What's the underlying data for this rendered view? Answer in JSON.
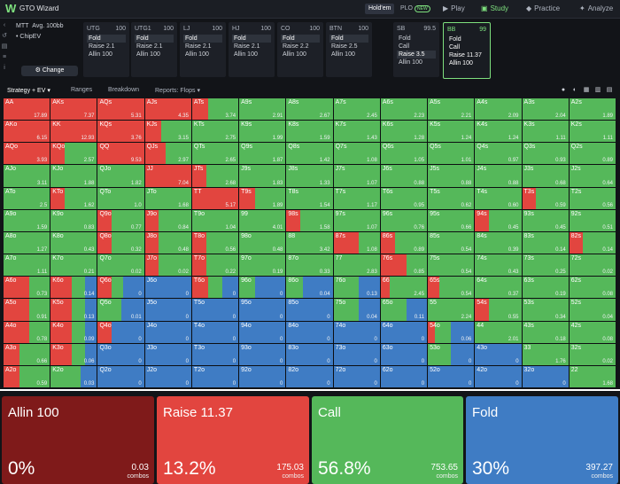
{
  "app": {
    "title": "GTO Wizard",
    "logo": "W"
  },
  "modes": {
    "holdem": "Hold'em",
    "plo": "PLO",
    "plo_badge": "NEW"
  },
  "nav": [
    {
      "label": "Play",
      "icon": "▶"
    },
    {
      "label": "Study",
      "icon": "▣"
    },
    {
      "label": "Practice",
      "icon": "◆"
    },
    {
      "label": "Analyze",
      "icon": "✦"
    }
  ],
  "info": {
    "format": "MTT",
    "stack": "Avg. 100bb",
    "model": "ChipEV",
    "change_label": "Change"
  },
  "positions": [
    {
      "name": "UTG",
      "stack": "100",
      "actions": [
        "Fold",
        "Raise 2.1",
        "Allin 100"
      ],
      "selected": 0
    },
    {
      "name": "UTG1",
      "stack": "100",
      "actions": [
        "Fold",
        "Raise 2.1",
        "Allin 100"
      ],
      "selected": 0
    },
    {
      "name": "LJ",
      "stack": "100",
      "actions": [
        "Fold",
        "Raise 2.1",
        "Allin 100"
      ],
      "selected": 0
    },
    {
      "name": "HJ",
      "stack": "100",
      "actions": [
        "Fold",
        "Raise 2.1",
        "Allin 100"
      ],
      "selected": 0
    },
    {
      "name": "CO",
      "stack": "100",
      "actions": [
        "Fold",
        "Raise 2.2",
        "Allin 100"
      ],
      "selected": 0
    },
    {
      "name": "BTN",
      "stack": "100",
      "actions": [
        "Fold",
        "Raise 2.5",
        "Allin 100"
      ],
      "selected": 0
    },
    {
      "name": "SB",
      "stack": "99.5",
      "actions": [
        "Fold",
        "Call",
        "Raise 3.5",
        "Allin 100"
      ],
      "selected": 2
    },
    {
      "name": "BB",
      "stack": "99",
      "actions": [
        "Fold",
        "Call",
        "Raise 11.37",
        "Allin 100"
      ],
      "selected": -1
    }
  ],
  "toolbar": {
    "strategy": "Strategy + EV",
    "ranges": "Ranges",
    "breakdown": "Breakdown",
    "reports": "Reports: Flops"
  },
  "colors": {
    "allin": "#7f1a1a",
    "raise": "#e2453f",
    "call": "#55b85a",
    "fold": "#3f7cc4"
  },
  "matrix": [
    [
      {
        "h": "AA",
        "ev": "17.89",
        "r": 1,
        "c": 0
      },
      {
        "h": "AKs",
        "ev": "7.37",
        "r": 1,
        "c": 0
      },
      {
        "h": "AQs",
        "ev": "5.31",
        "r": 1,
        "c": 0
      },
      {
        "h": "AJs",
        "ev": "4.35",
        "r": 1,
        "c": 0
      },
      {
        "h": "ATs",
        "ev": "3.74",
        "r": 0.35,
        "c": 0.65
      },
      {
        "h": "A9s",
        "ev": "2.91",
        "r": 0,
        "c": 1
      },
      {
        "h": "A8s",
        "ev": "2.67",
        "r": 0,
        "c": 1
      },
      {
        "h": "A7s",
        "ev": "2.45",
        "r": 0,
        "c": 1
      },
      {
        "h": "A6s",
        "ev": "2.23",
        "r": 0,
        "c": 1
      },
      {
        "h": "A5s",
        "ev": "2.21",
        "r": 0,
        "c": 1
      },
      {
        "h": "A4s",
        "ev": "2.09",
        "r": 0,
        "c": 1
      },
      {
        "h": "A3s",
        "ev": "2.04",
        "r": 0,
        "c": 1
      },
      {
        "h": "A2s",
        "ev": "1.89",
        "r": 0,
        "c": 1
      }
    ],
    [
      {
        "h": "AKo",
        "ev": "6.15",
        "r": 1,
        "c": 0
      },
      {
        "h": "KK",
        "ev": "12.93",
        "r": 1,
        "c": 0
      },
      {
        "h": "KQs",
        "ev": "3.76",
        "r": 1,
        "c": 0
      },
      {
        "h": "KJs",
        "ev": "3.15",
        "r": 0.35,
        "c": 0.65
      },
      {
        "h": "KTs",
        "ev": "2.75",
        "r": 0,
        "c": 1
      },
      {
        "h": "K9s",
        "ev": "1.99",
        "r": 0,
        "c": 1
      },
      {
        "h": "K8s",
        "ev": "1.59",
        "r": 0,
        "c": 1
      },
      {
        "h": "K7s",
        "ev": "1.43",
        "r": 0,
        "c": 1
      },
      {
        "h": "K6s",
        "ev": "1.28",
        "r": 0,
        "c": 1
      },
      {
        "h": "K5s",
        "ev": "1.24",
        "r": 0,
        "c": 1
      },
      {
        "h": "K4s",
        "ev": "1.24",
        "r": 0,
        "c": 1
      },
      {
        "h": "K3s",
        "ev": "1.11",
        "r": 0,
        "c": 1
      },
      {
        "h": "K2s",
        "ev": "1.11",
        "r": 0,
        "c": 1
      }
    ],
    [
      {
        "h": "AQo",
        "ev": "3.93",
        "r": 1,
        "c": 0
      },
      {
        "h": "KQo",
        "ev": "2.57",
        "r": 0.3,
        "c": 0.7
      },
      {
        "h": "QQ",
        "ev": "9.53",
        "r": 1,
        "c": 0
      },
      {
        "h": "QJs",
        "ev": "2.97",
        "r": 0.45,
        "c": 0.55
      },
      {
        "h": "QTs",
        "ev": "2.65",
        "r": 0,
        "c": 1
      },
      {
        "h": "Q9s",
        "ev": "1.87",
        "r": 0,
        "c": 1
      },
      {
        "h": "Q8s",
        "ev": "1.42",
        "r": 0,
        "c": 1
      },
      {
        "h": "Q7s",
        "ev": "1.08",
        "r": 0,
        "c": 1
      },
      {
        "h": "Q6s",
        "ev": "1.05",
        "r": 0,
        "c": 1
      },
      {
        "h": "Q5s",
        "ev": "1.01",
        "r": 0,
        "c": 1
      },
      {
        "h": "Q4s",
        "ev": "0.97",
        "r": 0,
        "c": 1
      },
      {
        "h": "Q3s",
        "ev": "0.93",
        "r": 0,
        "c": 1
      },
      {
        "h": "Q2s",
        "ev": "0.89",
        "r": 0,
        "c": 1
      }
    ],
    [
      {
        "h": "AJo",
        "ev": "3.11",
        "r": 0,
        "c": 1
      },
      {
        "h": "KJo",
        "ev": "1.88",
        "r": 0,
        "c": 1
      },
      {
        "h": "QJo",
        "ev": "1.82",
        "r": 0,
        "c": 1
      },
      {
        "h": "JJ",
        "ev": "7.04",
        "r": 1,
        "c": 0
      },
      {
        "h": "JTs",
        "ev": "2.68",
        "r": 0.3,
        "c": 0.7
      },
      {
        "h": "J9s",
        "ev": "1.83",
        "r": 0,
        "c": 1
      },
      {
        "h": "J8s",
        "ev": "1.33",
        "r": 0,
        "c": 1
      },
      {
        "h": "J7s",
        "ev": "1.07",
        "r": 0,
        "c": 1
      },
      {
        "h": "J6s",
        "ev": "0.88",
        "r": 0,
        "c": 1
      },
      {
        "h": "J5s",
        "ev": "0.88",
        "r": 0,
        "c": 1
      },
      {
        "h": "J4s",
        "ev": "0.88",
        "r": 0,
        "c": 1
      },
      {
        "h": "J3s",
        "ev": "0.68",
        "r": 0,
        "c": 1
      },
      {
        "h": "J2s",
        "ev": "0.64",
        "r": 0,
        "c": 1
      }
    ],
    [
      {
        "h": "ATo",
        "ev": "2.5",
        "r": 0,
        "c": 1
      },
      {
        "h": "KTo",
        "ev": "1.62",
        "r": 0.3,
        "c": 0.7
      },
      {
        "h": "QTo",
        "ev": "1.0",
        "r": 0,
        "c": 1
      },
      {
        "h": "JTo",
        "ev": "1.68",
        "r": 0,
        "c": 1
      },
      {
        "h": "TT",
        "ev": "5.17",
        "r": 1,
        "c": 0
      },
      {
        "h": "T9s",
        "ev": "1.89",
        "r": 0.35,
        "c": 0.65
      },
      {
        "h": "T8s",
        "ev": "1.54",
        "r": 0,
        "c": 1
      },
      {
        "h": "T7s",
        "ev": "1.17",
        "r": 0,
        "c": 1
      },
      {
        "h": "T6s",
        "ev": "0.95",
        "r": 0,
        "c": 1
      },
      {
        "h": "T5s",
        "ev": "0.62",
        "r": 0,
        "c": 1
      },
      {
        "h": "T4s",
        "ev": "0.60",
        "r": 0,
        "c": 1
      },
      {
        "h": "T3s",
        "ev": "0.59",
        "r": 0.3,
        "c": 0.7
      },
      {
        "h": "T2s",
        "ev": "0.56",
        "r": 0,
        "c": 1
      }
    ],
    [
      {
        "h": "A9o",
        "ev": "1.59",
        "r": 0,
        "c": 1
      },
      {
        "h": "K9o",
        "ev": "0.83",
        "r": 0,
        "c": 1
      },
      {
        "h": "Q9o",
        "ev": "0.77",
        "r": 0.3,
        "c": 0.7
      },
      {
        "h": "J9o",
        "ev": "0.84",
        "r": 0.3,
        "c": 0.7
      },
      {
        "h": "T9o",
        "ev": "1.04",
        "r": 0,
        "c": 1
      },
      {
        "h": "99",
        "ev": "4.01",
        "r": 0,
        "c": 1
      },
      {
        "h": "98s",
        "ev": "1.58",
        "r": 0.3,
        "c": 0.7
      },
      {
        "h": "97s",
        "ev": "1.07",
        "r": 0,
        "c": 1
      },
      {
        "h": "96s",
        "ev": "0.76",
        "r": 0,
        "c": 1
      },
      {
        "h": "95s",
        "ev": "0.66",
        "r": 0,
        "c": 1
      },
      {
        "h": "94s",
        "ev": "0.45",
        "r": 0.3,
        "c": 0.7
      },
      {
        "h": "93s",
        "ev": "0.45",
        "r": 0,
        "c": 1
      },
      {
        "h": "92s",
        "ev": "0.51",
        "r": 0,
        "c": 1
      }
    ],
    [
      {
        "h": "A8o",
        "ev": "1.27",
        "r": 0,
        "c": 1
      },
      {
        "h": "K8o",
        "ev": "0.43",
        "r": 0,
        "c": 1
      },
      {
        "h": "Q8o",
        "ev": "0.32",
        "r": 0.3,
        "c": 0.7
      },
      {
        "h": "J8o",
        "ev": "0.48",
        "r": 0.3,
        "c": 0.7
      },
      {
        "h": "T8o",
        "ev": "0.56",
        "r": 0.3,
        "c": 0.7
      },
      {
        "h": "98o",
        "ev": "0.48",
        "r": 0,
        "c": 1
      },
      {
        "h": "88",
        "ev": "3.42",
        "r": 0,
        "c": 1
      },
      {
        "h": "87s",
        "ev": "1.08",
        "r": 0.55,
        "c": 0.45
      },
      {
        "h": "86s",
        "ev": "0.89",
        "r": 0.3,
        "c": 0.7
      },
      {
        "h": "85s",
        "ev": "0.54",
        "r": 0,
        "c": 1
      },
      {
        "h": "84s",
        "ev": "0.39",
        "r": 0,
        "c": 1
      },
      {
        "h": "83s",
        "ev": "0.14",
        "r": 0,
        "c": 1
      },
      {
        "h": "82s",
        "ev": "0.14",
        "r": 0.3,
        "c": 0.7
      }
    ],
    [
      {
        "h": "A7o",
        "ev": "1.11",
        "r": 0,
        "c": 1
      },
      {
        "h": "K7o",
        "ev": "0.21",
        "r": 0,
        "c": 1
      },
      {
        "h": "Q7o",
        "ev": "0.02",
        "r": 0,
        "c": 1
      },
      {
        "h": "J7o",
        "ev": "0.02",
        "r": 0.3,
        "c": 0.7
      },
      {
        "h": "T7o",
        "ev": "0.22",
        "r": 0.3,
        "c": 0.7
      },
      {
        "h": "97o",
        "ev": "0.19",
        "r": 0,
        "c": 1
      },
      {
        "h": "87o",
        "ev": "0.33",
        "r": 0,
        "c": 1
      },
      {
        "h": "77",
        "ev": "2.83",
        "r": 0,
        "c": 1
      },
      {
        "h": "76s",
        "ev": "0.85",
        "r": 0.55,
        "c": 0.45
      },
      {
        "h": "75s",
        "ev": "0.54",
        "r": 0,
        "c": 1
      },
      {
        "h": "74s",
        "ev": "0.43",
        "r": 0,
        "c": 1
      },
      {
        "h": "73s",
        "ev": "0.25",
        "r": 0,
        "c": 1
      },
      {
        "h": "72s",
        "ev": "0.02",
        "r": 0,
        "c": 1
      }
    ],
    [
      {
        "h": "A6o",
        "ev": "0.73",
        "r": 0.55,
        "c": 0.45
      },
      {
        "h": "K6o",
        "ev": "0.14",
        "r": 0.45,
        "c": 0.3
      },
      {
        "h": "Q6o",
        "ev": "0",
        "r": 0.3,
        "c": 0.25
      },
      {
        "h": "J6o",
        "ev": "0",
        "r": 0,
        "c": 0
      },
      {
        "h": "T6o",
        "ev": "0",
        "r": 0.35,
        "c": 0.3
      },
      {
        "h": "96o",
        "ev": "0",
        "r": 0,
        "c": 0.35
      },
      {
        "h": "86o",
        "ev": "0.04",
        "r": 0,
        "c": 0.35
      },
      {
        "h": "76o",
        "ev": "0.13",
        "r": 0,
        "c": 0.55
      },
      {
        "h": "66",
        "ev": "2.45",
        "r": 0.2,
        "c": 0.8
      },
      {
        "h": "65s",
        "ev": "0.54",
        "r": 0.25,
        "c": 0.75
      },
      {
        "h": "64s",
        "ev": "0.37",
        "r": 0,
        "c": 1
      },
      {
        "h": "63s",
        "ev": "0.19",
        "r": 0,
        "c": 1
      },
      {
        "h": "62s",
        "ev": "0.08",
        "r": 0,
        "c": 1
      }
    ],
    [
      {
        "h": "A5o",
        "ev": "0.91",
        "r": 0.55,
        "c": 0.45
      },
      {
        "h": "K5o",
        "ev": "0.13",
        "r": 0.45,
        "c": 0.3
      },
      {
        "h": "Q5o",
        "ev": "0.01",
        "r": 0,
        "c": 0.5
      },
      {
        "h": "J5o",
        "ev": "0",
        "r": 0,
        "c": 0
      },
      {
        "h": "T5o",
        "ev": "0",
        "r": 0,
        "c": 0
      },
      {
        "h": "95o",
        "ev": "0",
        "r": 0,
        "c": 0
      },
      {
        "h": "85o",
        "ev": "0",
        "r": 0,
        "c": 0
      },
      {
        "h": "75o",
        "ev": "0.04",
        "r": 0,
        "c": 0.55
      },
      {
        "h": "65o",
        "ev": "0.11",
        "r": 0,
        "c": 0.55
      },
      {
        "h": "55",
        "ev": "2.24",
        "r": 0,
        "c": 1
      },
      {
        "h": "54s",
        "ev": "0.55",
        "r": 0.3,
        "c": 0.7
      },
      {
        "h": "53s",
        "ev": "0.34",
        "r": 0,
        "c": 1
      },
      {
        "h": "52s",
        "ev": "0.04",
        "r": 0,
        "c": 1
      }
    ],
    [
      {
        "h": "A4o",
        "ev": "0.78",
        "r": 0.55,
        "c": 0.45
      },
      {
        "h": "K4o",
        "ev": "0.09",
        "r": 0.45,
        "c": 0.3
      },
      {
        "h": "Q4o",
        "ev": "0",
        "r": 0.3,
        "c": 0
      },
      {
        "h": "J4o",
        "ev": "0",
        "r": 0,
        "c": 0
      },
      {
        "h": "T4o",
        "ev": "0",
        "r": 0,
        "c": 0
      },
      {
        "h": "94o",
        "ev": "0",
        "r": 0,
        "c": 0
      },
      {
        "h": "84o",
        "ev": "0",
        "r": 0,
        "c": 0
      },
      {
        "h": "74o",
        "ev": "0",
        "r": 0,
        "c": 0
      },
      {
        "h": "64o",
        "ev": "0",
        "r": 0,
        "c": 0
      },
      {
        "h": "54o",
        "ev": "0.06",
        "r": 0.15,
        "c": 0.35
      },
      {
        "h": "44",
        "ev": "2.01",
        "r": 0,
        "c": 1
      },
      {
        "h": "43s",
        "ev": "0.18",
        "r": 0,
        "c": 1
      },
      {
        "h": "42s",
        "ev": "0.08",
        "r": 0,
        "c": 1
      }
    ],
    [
      {
        "h": "A3o",
        "ev": "0.66",
        "r": 0.35,
        "c": 0.65
      },
      {
        "h": "K3o",
        "ev": "0.06",
        "r": 0.45,
        "c": 0.3
      },
      {
        "h": "Q3o",
        "ev": "0",
        "r": 0,
        "c": 0
      },
      {
        "h": "J3o",
        "ev": "0",
        "r": 0,
        "c": 0
      },
      {
        "h": "T3o",
        "ev": "0",
        "r": 0,
        "c": 0
      },
      {
        "h": "93o",
        "ev": "0",
        "r": 0,
        "c": 0
      },
      {
        "h": "83o",
        "ev": "0",
        "r": 0,
        "c": 0
      },
      {
        "h": "73o",
        "ev": "0",
        "r": 0,
        "c": 0
      },
      {
        "h": "63o",
        "ev": "0",
        "r": 0,
        "c": 0
      },
      {
        "h": "53o",
        "ev": "0",
        "r": 0,
        "c": 0.5
      },
      {
        "h": "43o",
        "ev": "0",
        "r": 0,
        "c": 0
      },
      {
        "h": "33",
        "ev": "1.76",
        "r": 0,
        "c": 1
      },
      {
        "h": "32s",
        "ev": "0.02",
        "r": 0,
        "c": 1
      }
    ],
    [
      {
        "h": "A2o",
        "ev": "0.59",
        "r": 0.35,
        "c": 0.65
      },
      {
        "h": "K2o",
        "ev": "0.03",
        "r": 0,
        "c": 0.65
      },
      {
        "h": "Q2o",
        "ev": "0",
        "r": 0,
        "c": 0
      },
      {
        "h": "J2o",
        "ev": "0",
        "r": 0,
        "c": 0
      },
      {
        "h": "T2o",
        "ev": "0",
        "r": 0,
        "c": 0
      },
      {
        "h": "92o",
        "ev": "0",
        "r": 0,
        "c": 0
      },
      {
        "h": "82o",
        "ev": "0",
        "r": 0,
        "c": 0
      },
      {
        "h": "72o",
        "ev": "0",
        "r": 0,
        "c": 0
      },
      {
        "h": "62o",
        "ev": "0",
        "r": 0,
        "c": 0
      },
      {
        "h": "52o",
        "ev": "0",
        "r": 0,
        "c": 0
      },
      {
        "h": "42o",
        "ev": "0",
        "r": 0,
        "c": 0
      },
      {
        "h": "32o",
        "ev": "0",
        "r": 0,
        "c": 0
      },
      {
        "h": "22",
        "ev": "1.68",
        "r": 0,
        "c": 1
      }
    ]
  ],
  "summary": [
    {
      "key": "allin",
      "label": "Allin 100",
      "pct": "0%",
      "combos": "0.03",
      "unit": "combos",
      "color": "#7f1a1a"
    },
    {
      "key": "raise",
      "label": "Raise 11.37",
      "pct": "13.2%",
      "combos": "175.03",
      "unit": "combos",
      "color": "#e2453f"
    },
    {
      "key": "call",
      "label": "Call",
      "pct": "56.8%",
      "combos": "753.65",
      "unit": "combos",
      "color": "#55b85a"
    },
    {
      "key": "fold",
      "label": "Fold",
      "pct": "30%",
      "combos": "397.27",
      "unit": "combos",
      "color": "#3f7cc4"
    }
  ]
}
